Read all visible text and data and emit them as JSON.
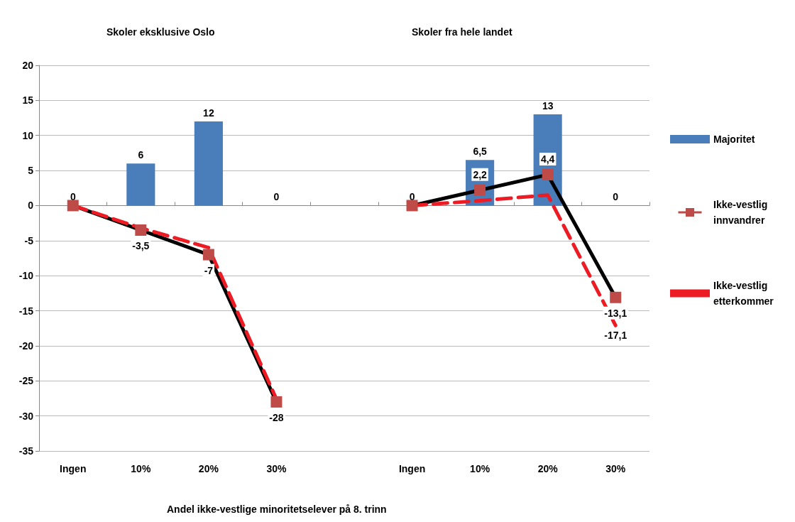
{
  "chart_data": {
    "type": "bar",
    "annotations": [
      "Skoler eksklusive Oslo",
      "Skoler fra hele landet"
    ],
    "xlabel": "Andel ikke-vestlige minoritetselever på 8. trinn",
    "categories": [
      "Ingen",
      "10%",
      "20%",
      "30%",
      null,
      "Ingen",
      "10%",
      "20%",
      "30%"
    ],
    "series": [
      {
        "name": "Majoritet",
        "color": "#4a7ebb",
        "values": [
          0,
          6,
          12,
          0,
          null,
          0,
          6.5,
          13,
          0
        ],
        "value_labels": [
          "0",
          "6",
          "12",
          "0",
          null,
          "0",
          "6,5",
          "13",
          "0"
        ]
      },
      {
        "name": "Ikke-vestlig innvandrer",
        "type": "line",
        "color": "#000000",
        "colors": [
          "#be4b48",
          "#be4b48",
          "#be4b48",
          "#be4b48",
          null,
          "#be4b48",
          "#be4b48",
          "#be4b48",
          "#be4b48"
        ],
        "marker": "square",
        "line_style": "solid",
        "values": [
          0,
          -3.5,
          -7,
          -28,
          null,
          0,
          2.2,
          4.4,
          -13.1
        ],
        "value_labels": [
          null,
          "-3,5",
          "-7",
          "-28",
          null,
          null,
          "2,2",
          "4,4",
          "-13,1"
        ]
      },
      {
        "name": "Ikke-vestlig etterkommer",
        "type": "line",
        "color": "#ed1c24",
        "marker": "none",
        "line_style": "dashed",
        "values": [
          0,
          -3.2,
          -6,
          -27.6,
          null,
          0,
          0.7,
          1.5,
          -17.1
        ],
        "value_labels": [
          null,
          null,
          null,
          null,
          null,
          null,
          null,
          null,
          "-17,1"
        ]
      }
    ],
    "ylim": [
      -35,
      20
    ],
    "yticks": [
      -35,
      -30,
      -25,
      -20,
      -15,
      -10,
      -5,
      0,
      5,
      10,
      15,
      20
    ],
    "grid": "y",
    "legend": "right"
  }
}
